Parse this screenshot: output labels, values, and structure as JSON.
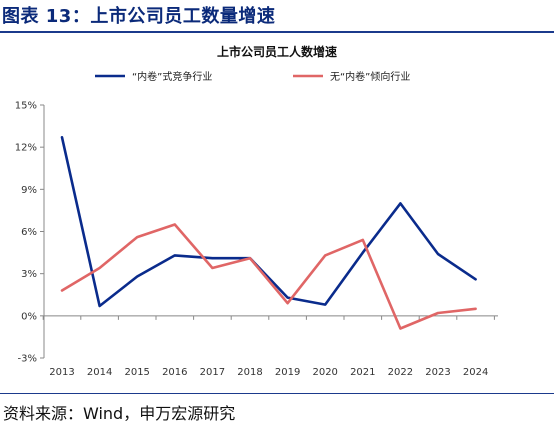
{
  "figure": {
    "title": "图表 13：上市公司员工数量增速",
    "source": "资料来源：Wind，申万宏源研究"
  },
  "chart_data": {
    "type": "line",
    "title": "上市公司员工人数增速",
    "x": [
      "2013",
      "2014",
      "2015",
      "2016",
      "2017",
      "2018",
      "2019",
      "2020",
      "2021",
      "2022",
      "2023",
      "2024"
    ],
    "yticks": [
      "-3%",
      "0%",
      "3%",
      "6%",
      "9%",
      "12%",
      "15%"
    ],
    "ylim": [
      -3,
      15
    ],
    "grid": false,
    "legend_position": "top",
    "series": [
      {
        "name": "“内卷”式竞争行业",
        "color": "#0a2b8c",
        "values": [
          12.7,
          0.7,
          2.8,
          4.3,
          4.1,
          4.1,
          1.3,
          0.8,
          4.5,
          8.0,
          4.4,
          2.6
        ]
      },
      {
        "name": "无“内卷”倾向行业",
        "color": "#e06666",
        "values": [
          1.8,
          3.4,
          5.6,
          6.5,
          3.4,
          4.1,
          0.9,
          4.3,
          5.4,
          -0.9,
          0.2,
          0.5
        ]
      }
    ]
  }
}
